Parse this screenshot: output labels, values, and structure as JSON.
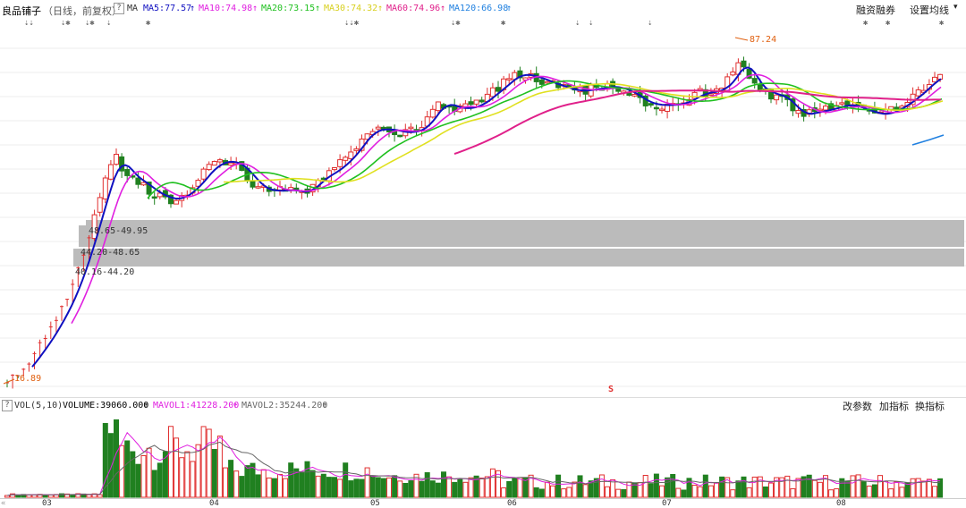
{
  "header": {
    "stock_name": "良品铺子",
    "period": "（日线，前复权）",
    "help": "?",
    "ma_prefix": "MA",
    "ma5": "MA5:77.57",
    "ma10": "MA10:74.98",
    "ma20": "MA20:73.15",
    "ma30": "MA30:74.32",
    "ma60": "MA60:74.96",
    "ma120": "MA120:66.98",
    "up_arrow": "↑",
    "margin_trading": "融资融券",
    "set_ma": "设置均线",
    "dropdown": "▾"
  },
  "colors": {
    "ma5": "#1010c0",
    "ma10": "#e020e0",
    "ma20": "#20c020",
    "ma30": "#e0e020",
    "ma60": "#e0208a",
    "ma120": "#2080e0",
    "up": "#e03030",
    "down": "#208020",
    "zone": "#bbbbbb"
  },
  "event_markers": {
    "symbols": [
      "⇣⇣",
      "⇣✱",
      "⇣✱",
      "⇣",
      "✱",
      "⇣⇣✱",
      "⇣✱",
      "✱",
      "⇣",
      "⇣",
      "⇣",
      "✱",
      "✱",
      "✱"
    ]
  },
  "zones": {
    "z1": "48.65-49.95",
    "z2": "44.20-48.65",
    "z3": "40.16-44.20"
  },
  "price_labels": {
    "high": "87.24",
    "low": "16.89",
    "s_mark": "S"
  },
  "volume": {
    "help": "?",
    "title": "VOL(5,10)",
    "volume": "VOLUME:39060.000",
    "mavol1": "MAVOL1:41228.200",
    "mavol2": "MAVOL2:35244.200",
    "up_arrow": "↑",
    "btn_params": "改参数",
    "btn_add": "加指标",
    "btn_switch": "换指标"
  },
  "xaxis": {
    "nav": "«",
    "labels": [
      "03",
      "04",
      "05",
      "06",
      "07",
      "08"
    ]
  }
}
